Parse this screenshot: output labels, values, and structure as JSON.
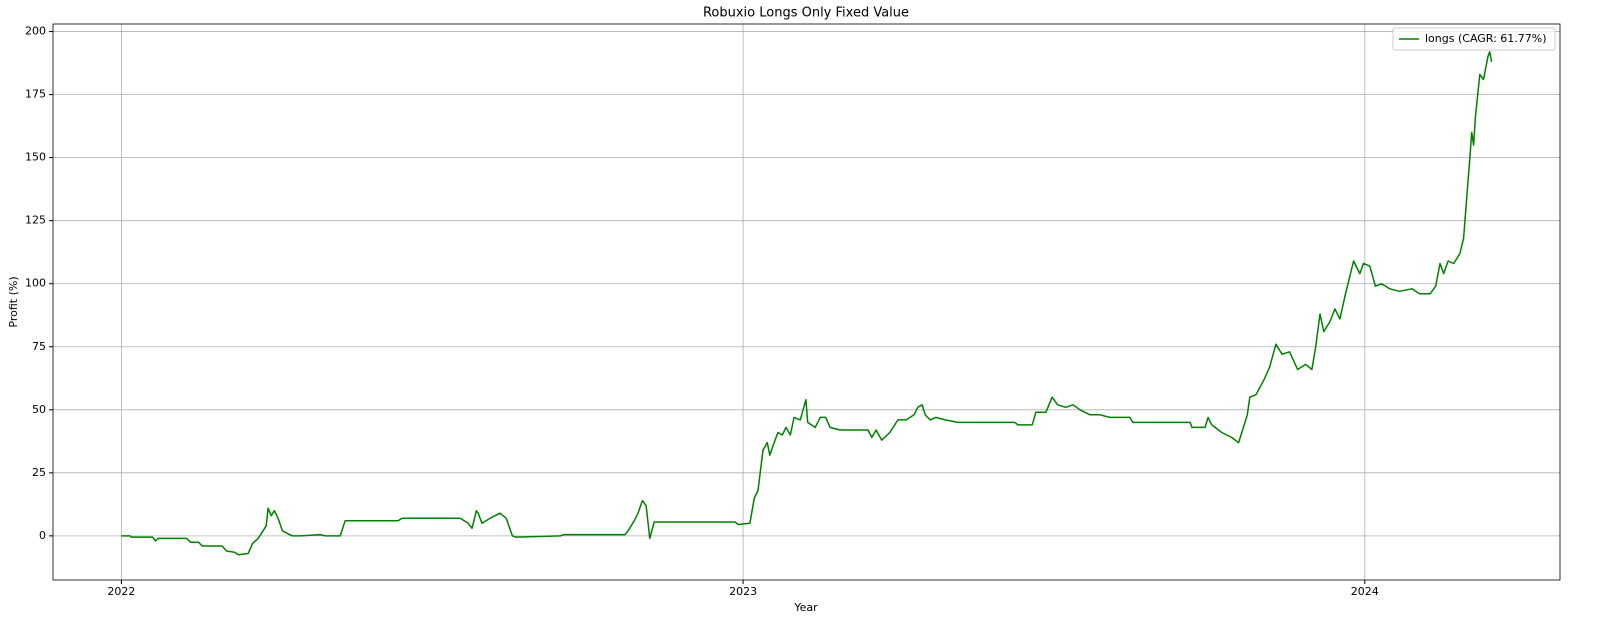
{
  "chart_data": {
    "type": "line",
    "title": "Robuxio Longs Only Fixed Value",
    "xlabel": "Year",
    "ylabel": "Profit (%)",
    "xlim": [
      2021.89,
      2024.314
    ],
    "xticks": [
      2022,
      2023,
      2024
    ],
    "ylim": [
      -17.5,
      203
    ],
    "yticks": [
      0,
      25,
      50,
      75,
      100,
      125,
      150,
      175,
      200
    ],
    "grid": true,
    "legend": "upper right",
    "x": [
      2022.0,
      2022.014,
      2022.016,
      2022.05,
      2022.055,
      2022.059,
      2022.105,
      2022.111,
      2022.124,
      2022.13,
      2022.162,
      2022.169,
      2022.182,
      2022.188,
      2022.204,
      2022.211,
      2022.22,
      2022.228,
      2022.233,
      2022.236,
      2022.241,
      2022.246,
      2022.252,
      2022.259,
      2022.267,
      2022.275,
      2022.288,
      2022.32,
      2022.328,
      2022.352,
      2022.36,
      2022.445,
      2022.452,
      2022.545,
      2022.558,
      2022.564,
      2022.571,
      2022.574,
      2022.58,
      2022.593,
      2022.609,
      2022.619,
      2022.629,
      2022.635,
      2022.706,
      2022.712,
      2022.81,
      2022.815,
      2022.825,
      2022.831,
      2022.838,
      2022.844,
      2022.85,
      2022.857,
      2022.987,
      2022.992,
      2023.011,
      2023.018,
      2023.024,
      2023.032,
      2023.039,
      2023.043,
      2023.05,
      2023.056,
      2023.063,
      2023.069,
      2023.076,
      2023.082,
      2023.092,
      2023.101,
      2023.104,
      2023.116,
      2023.124,
      2023.133,
      2023.14,
      2023.156,
      2023.201,
      2023.207,
      2023.214,
      2023.223,
      2023.236,
      2023.249,
      2023.262,
      2023.275,
      2023.281,
      2023.288,
      2023.293,
      2023.301,
      2023.31,
      2023.325,
      2023.346,
      2023.437,
      2023.442,
      2023.465,
      2023.471,
      2023.487,
      2023.497,
      2023.506,
      2023.519,
      2023.531,
      2023.542,
      2023.558,
      2023.574,
      2023.59,
      2023.622,
      2023.627,
      2023.719,
      2023.722,
      2023.743,
      2023.748,
      2023.754,
      2023.77,
      2023.786,
      2023.797,
      2023.806,
      2023.811,
      2023.815,
      2023.825,
      2023.838,
      2023.847,
      2023.857,
      2023.867,
      2023.879,
      2023.892,
      2023.905,
      2023.915,
      2023.921,
      2023.928,
      2023.934,
      2023.944,
      2023.952,
      2023.96,
      2023.969,
      2023.982,
      2023.992,
      2023.998,
      2024.008,
      2024.017,
      2024.027,
      2024.04,
      2024.056,
      2024.076,
      2024.088,
      2024.105,
      2024.114,
      2024.121,
      2024.127,
      2024.134,
      2024.143,
      2024.153,
      2024.159,
      2024.164,
      2024.169,
      2024.172,
      2024.175,
      2024.178,
      2024.185,
      2024.191,
      2024.198,
      2024.201,
      2024.204
    ],
    "series": [
      {
        "name": "longs (CAGR: 61.77%)",
        "color": "#008000",
        "values": [
          0,
          0,
          -0.5,
          -0.5,
          -2,
          -1,
          -1,
          -2.5,
          -2.5,
          -4,
          -4,
          -6,
          -6.5,
          -7.5,
          -7,
          -3,
          -1,
          2,
          4,
          11,
          8,
          10,
          7,
          2,
          1,
          0,
          0,
          0.5,
          0,
          0,
          6,
          6,
          7,
          7,
          5,
          3,
          10,
          9,
          5,
          7,
          9,
          7,
          0,
          -0.5,
          0,
          0.5,
          0.5,
          2,
          6,
          9,
          14,
          12,
          -1,
          5.5,
          5.5,
          4.5,
          5,
          15,
          18,
          34,
          37,
          32,
          37,
          41,
          40,
          43,
          40,
          47,
          46,
          54,
          45,
          43,
          47,
          47,
          43,
          42,
          42,
          39,
          42,
          38,
          41,
          46,
          46,
          48,
          51,
          52,
          48,
          46,
          47,
          46,
          45,
          45,
          44,
          44,
          49,
          49,
          55,
          52,
          51,
          52,
          50,
          48,
          48,
          47,
          47,
          45,
          45,
          43,
          43,
          47,
          44,
          41,
          39,
          37,
          44,
          48,
          55,
          56,
          62,
          67,
          76,
          72,
          73,
          66,
          68,
          66,
          75,
          88,
          81,
          85,
          90,
          86,
          96,
          109,
          104,
          108,
          107,
          99,
          100,
          98,
          97,
          98,
          96,
          96,
          99,
          108,
          104,
          109,
          108,
          112,
          118,
          134,
          150,
          160,
          155,
          166,
          183,
          181,
          190,
          192,
          188
        ]
      }
    ]
  }
}
